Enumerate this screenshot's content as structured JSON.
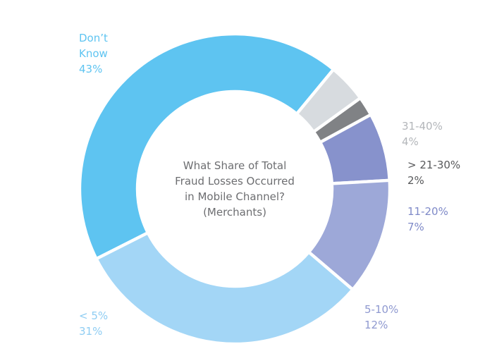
{
  "chart_data": {
    "type": "pie",
    "variant": "donut",
    "title_lines": [
      "What Share of Total",
      "Fraud Losses Occurred",
      "in Mobile Channel?",
      "(Merchants)"
    ],
    "slices": [
      {
        "label_lines": [
          "Don’t",
          "Know"
        ],
        "value": 43,
        "value_label": "43%",
        "color": "#5ec4f1",
        "label_color": "#5ec4f1"
      },
      {
        "label_lines": [
          "31-40%"
        ],
        "value": 4,
        "value_label": "4%",
        "color": "#d7dbdf",
        "label_color": "#b3b6ba"
      },
      {
        "label_lines": [
          "> 21-30%"
        ],
        "value": 2,
        "value_label": "2%",
        "color": "#808285",
        "label_color": "#58595b"
      },
      {
        "label_lines": [
          "11-20%"
        ],
        "value": 7,
        "value_label": "7%",
        "color": "#8792cc",
        "label_color": "#7f8ac8"
      },
      {
        "label_lines": [
          "5-10%"
        ],
        "value": 12,
        "value_label": "12%",
        "color": "#9da8d8",
        "label_color": "#8f99d0"
      },
      {
        "label_lines": [
          "< 5%"
        ],
        "value": 31,
        "value_label": "31%",
        "color": "#a3d6f6",
        "label_color": "#8fcdf3"
      }
    ]
  }
}
